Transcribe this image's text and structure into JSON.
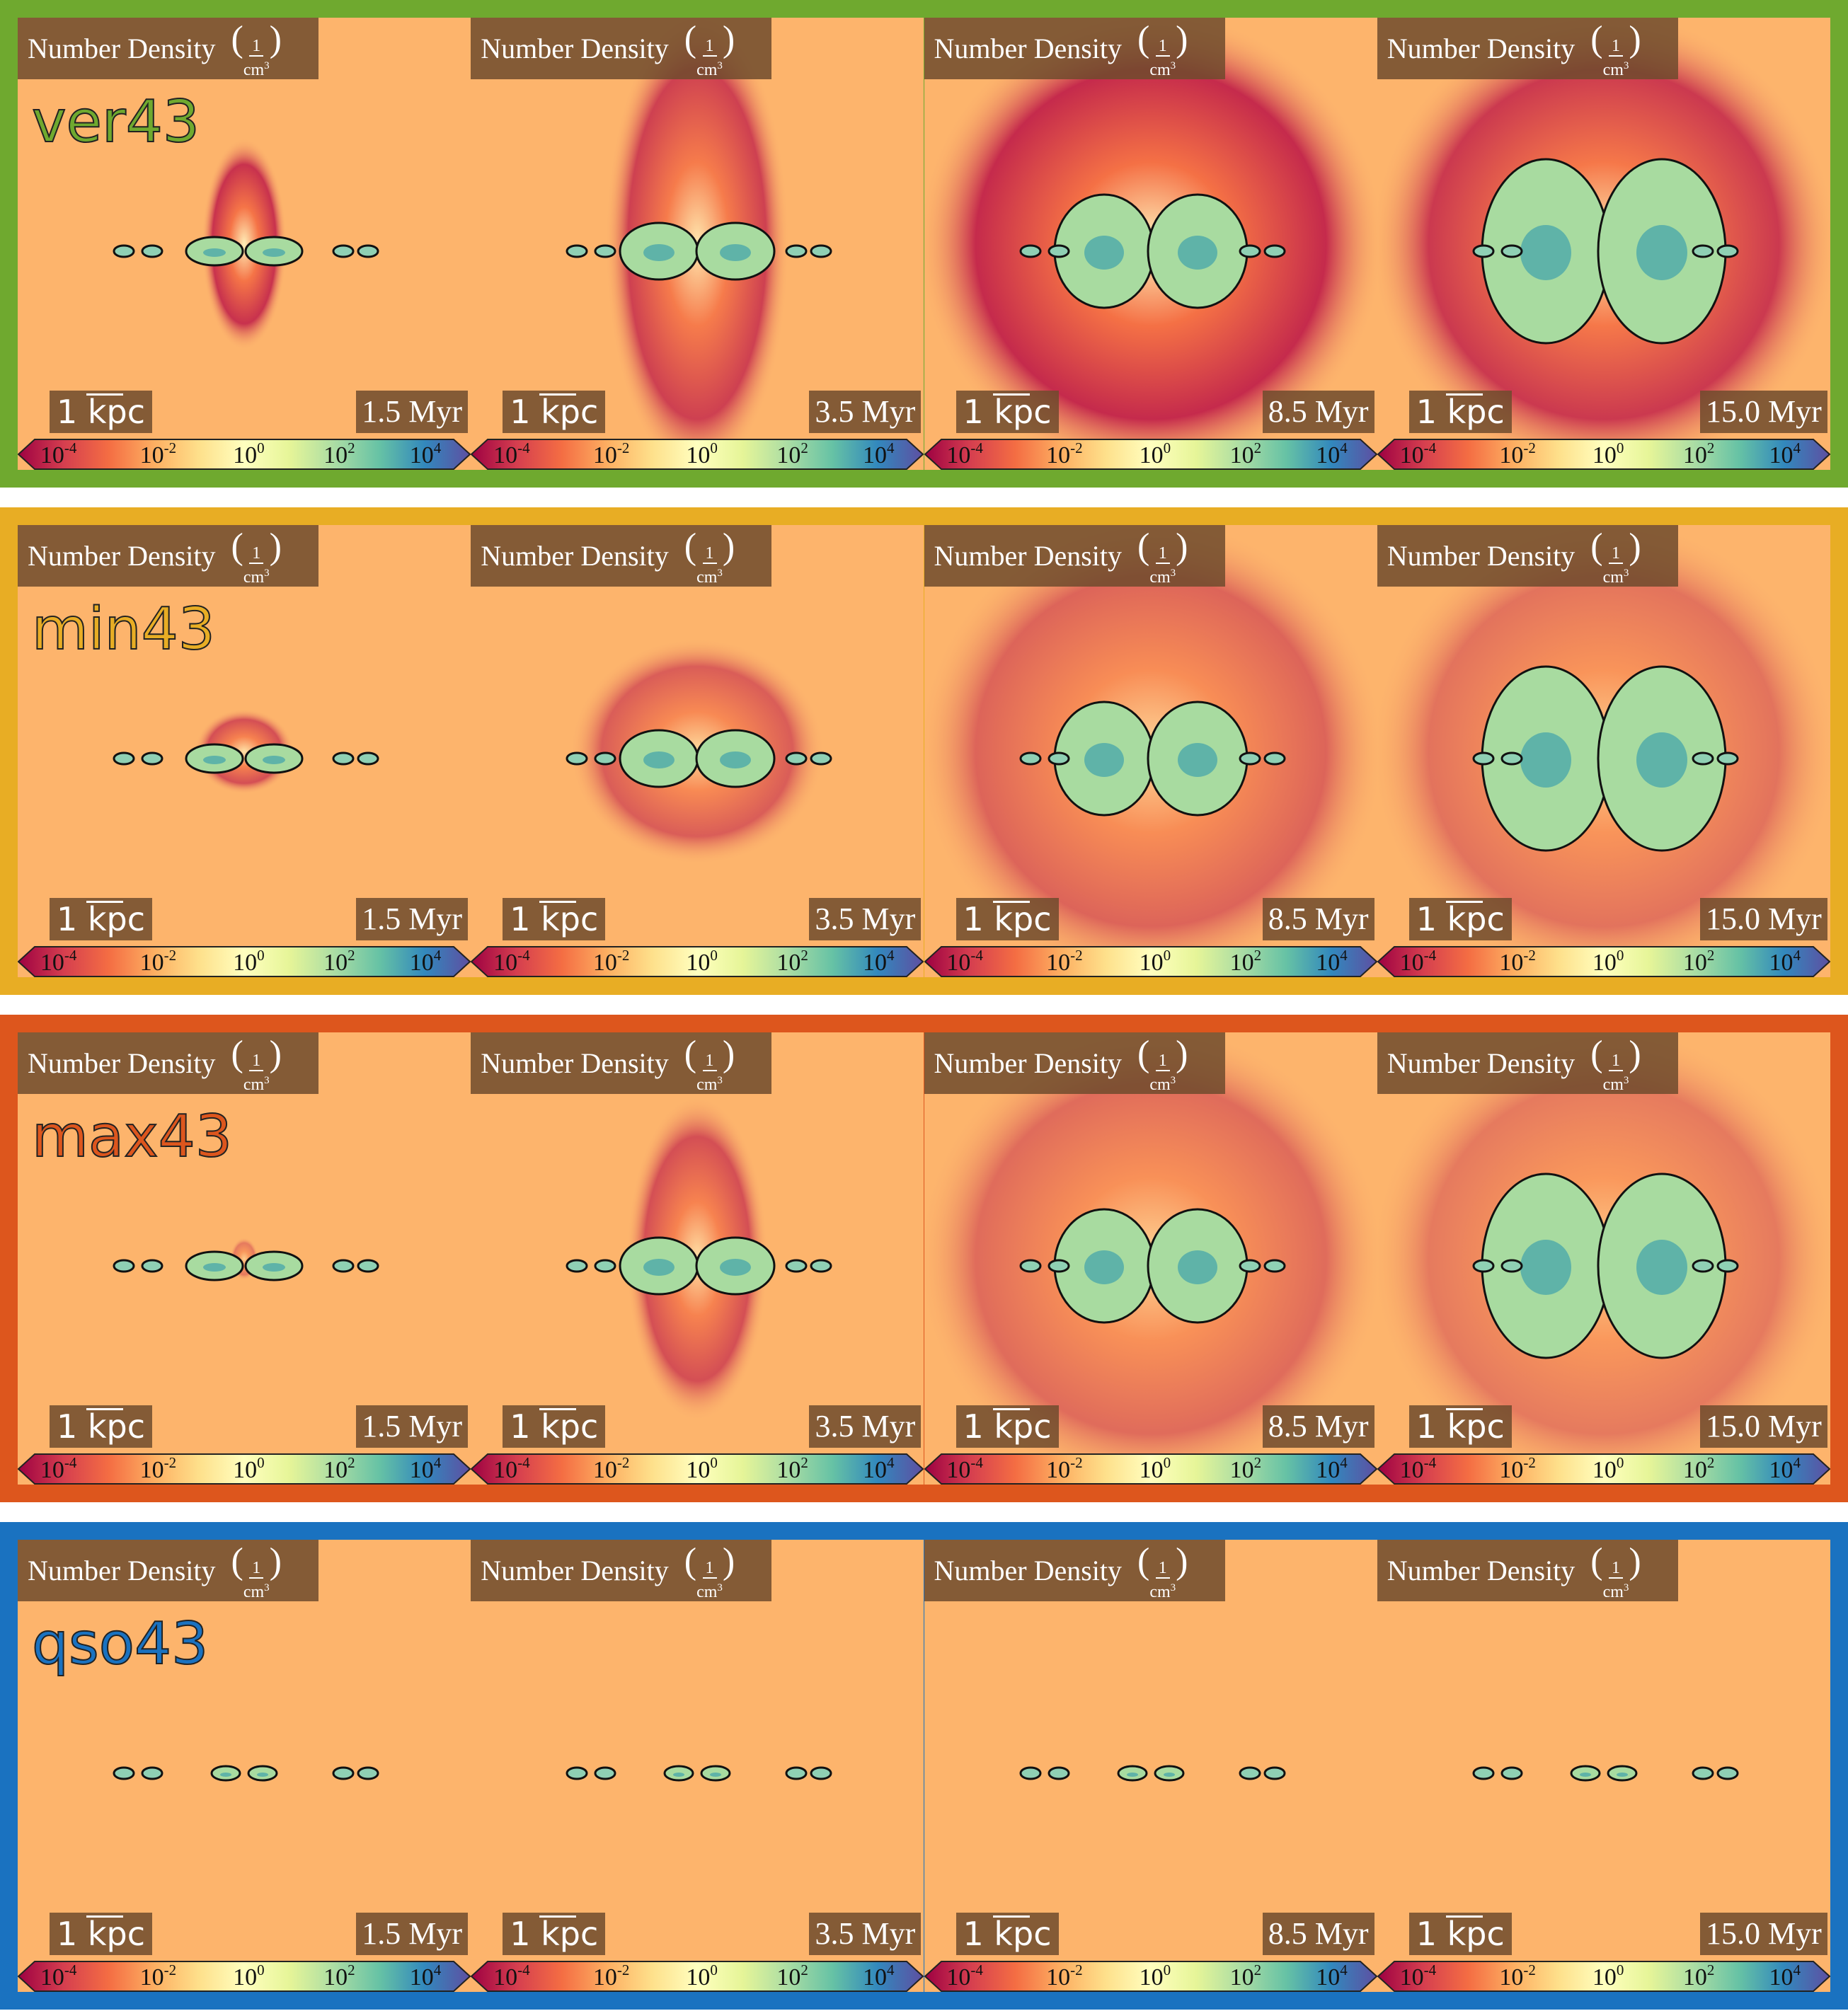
{
  "rows": [
    {
      "name": "ver43",
      "color": "#6fa92f"
    },
    {
      "name": "min43",
      "color": "#e8ad24"
    },
    {
      "name": "max43",
      "color": "#dd561d"
    },
    {
      "name": "qso43",
      "color": "#1a72c0"
    }
  ],
  "panel_label": "Number Density",
  "unit": {
    "numerator": "1",
    "denominator": "cm",
    "exponent": "3"
  },
  "scale_bar": "1 kpc",
  "times": [
    "1.5 Myr",
    "3.5 Myr",
    "8.5 Myr",
    "15.0 Myr"
  ],
  "colorbar_ticks": [
    {
      "base": "10",
      "exponent": "-4"
    },
    {
      "base": "10",
      "exponent": "-2"
    },
    {
      "base": "10",
      "exponent": "0"
    },
    {
      "base": "10",
      "exponent": "2"
    },
    {
      "base": "10",
      "exponent": "4"
    }
  ]
}
